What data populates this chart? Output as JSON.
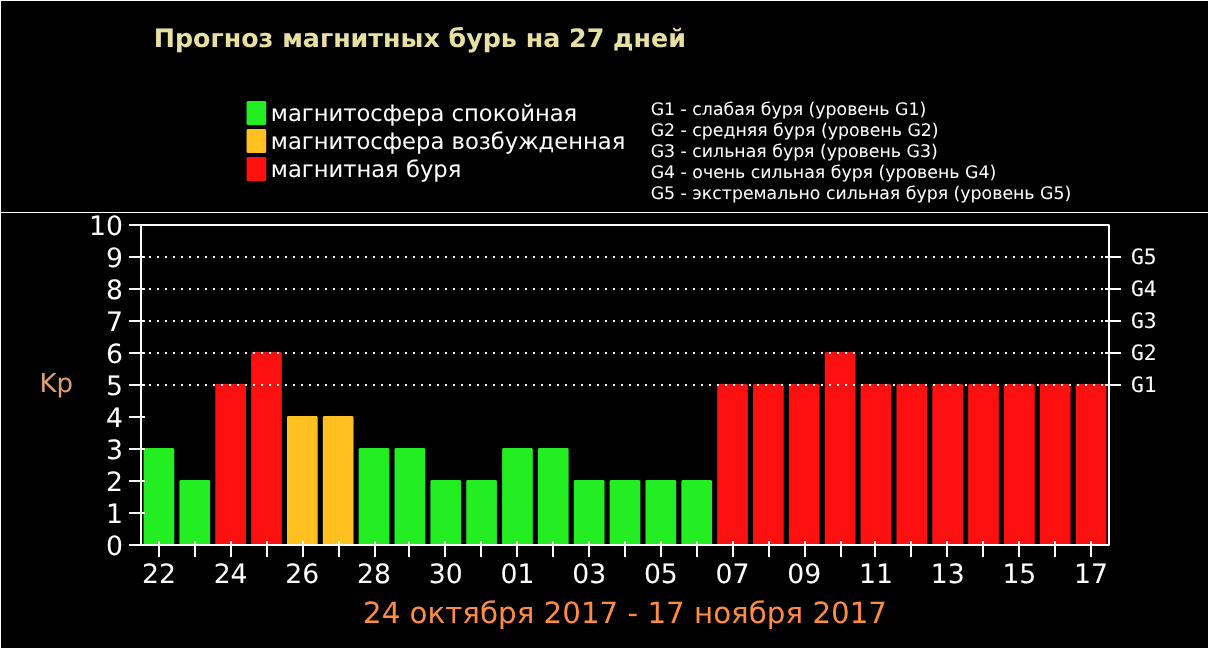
{
  "chart_data": {
    "type": "bar",
    "title": "Прогноз магнитных бурь на 27 дней",
    "xlabel": "24 октября 2017 - 17 ноября 2017",
    "ylabel": "Kp",
    "categories": [
      "22",
      null,
      "24",
      null,
      "26",
      null,
      "28",
      null,
      "30",
      null,
      "01",
      null,
      "03",
      null,
      "05",
      null,
      "07",
      null,
      "09",
      null,
      "11",
      null,
      "13",
      null,
      "15",
      null,
      "17"
    ],
    "series": [
      {
        "name": "магнитосфера спокойная",
        "color": "#22ee22",
        "values": [
          3,
          2,
          null,
          null,
          null,
          null,
          3,
          3,
          2,
          2,
          3,
          3,
          2,
          2,
          2,
          2,
          null,
          null,
          null,
          null,
          null,
          null,
          null,
          null,
          null,
          null,
          null
        ]
      },
      {
        "name": "магнитосфера возбужденная",
        "color": "#ffc020",
        "values": [
          null,
          null,
          null,
          null,
          4,
          4,
          null,
          null,
          null,
          null,
          null,
          null,
          null,
          null,
          null,
          null,
          null,
          null,
          null,
          null,
          null,
          null,
          null,
          null,
          null,
          null,
          null
        ]
      },
      {
        "name": "магнитная буря",
        "color": "#ff1010",
        "values": [
          null,
          null,
          5,
          6,
          null,
          null,
          null,
          null,
          null,
          null,
          null,
          null,
          null,
          null,
          null,
          null,
          5,
          5,
          5,
          6,
          5,
          5,
          5,
          5,
          5,
          5,
          5
        ]
      }
    ],
    "ylim": [
      0,
      10
    ],
    "yticks": [
      0,
      1,
      2,
      3,
      4,
      5,
      6,
      7,
      8,
      9,
      10
    ],
    "ref_lines": [
      {
        "axis": "y",
        "value": 5,
        "label": "G1",
        "line_style": "dotted",
        "color": "#ffffff"
      },
      {
        "axis": "y",
        "value": 6,
        "label": "G2",
        "line_style": "dotted",
        "color": "#ffffff"
      },
      {
        "axis": "y",
        "value": 7,
        "label": "G3",
        "line_style": "dotted",
        "color": "#ffffff"
      },
      {
        "axis": "y",
        "value": 8,
        "label": "G4",
        "line_style": "dotted",
        "color": "#ffffff"
      },
      {
        "axis": "y",
        "value": 9,
        "label": "G5",
        "line_style": "dotted",
        "color": "#ffffff"
      }
    ],
    "annotations": [
      "G1 - слабая буря (уровень G1)",
      "G2 - средняя буря (уровень G2)",
      "G3 - сильная буря (уровень G3)",
      "G4 - очень сильная буря (уровень G4)",
      "G5 - экстремально сильная буря (уровень G5)"
    ],
    "legend": "top left"
  }
}
